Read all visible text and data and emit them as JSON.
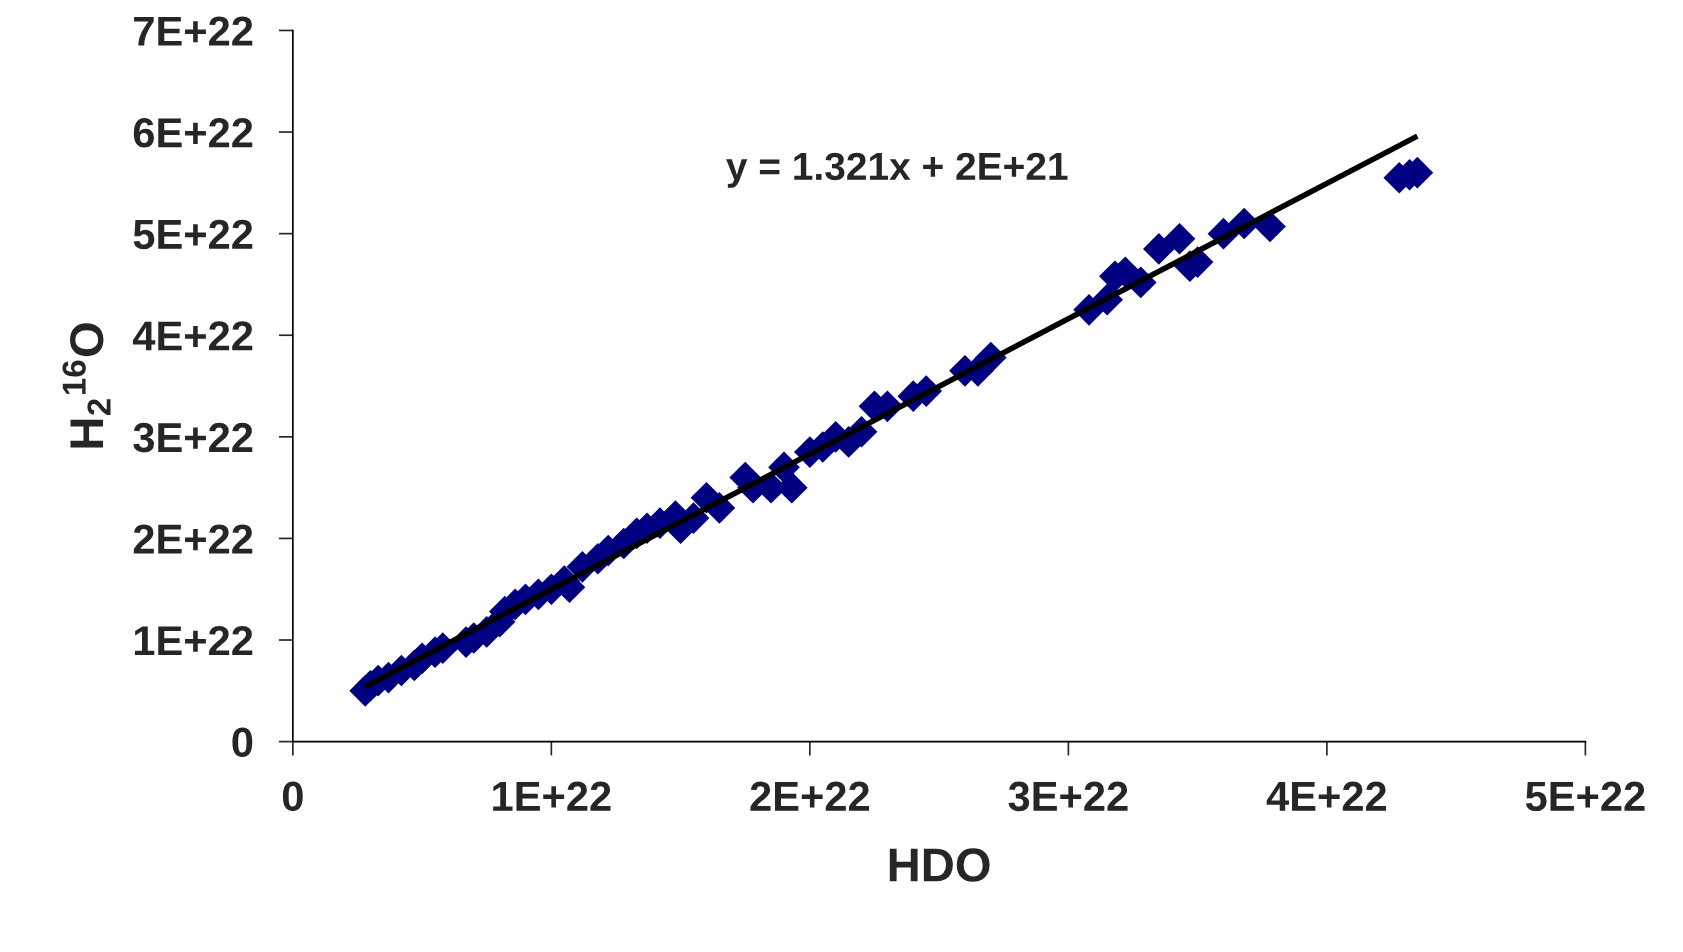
{
  "chart_data": {
    "type": "scatter",
    "xlabel": "HDO",
    "ylabel": "H$_{2}$$^{16}$O",
    "annotations": [
      "y = 1.321x + 2E+21"
    ],
    "xlim": [
      0,
      5e+22
    ],
    "ylim": [
      0,
      7e+22
    ],
    "xticks": [
      0,
      {
        "value": 1e+22,
        "label": "1E+22"
      },
      {
        "value": 2e+22,
        "label": "2E+22"
      },
      {
        "value": 3e+22,
        "label": "3E+22"
      },
      {
        "value": 4e+22,
        "label": "4E+22"
      },
      {
        "value": 5e+22,
        "label": "5E+22"
      }
    ],
    "yticks": [
      0,
      {
        "value": 1e+22,
        "label": "1E+22"
      },
      {
        "value": 2e+22,
        "label": "2E+22"
      },
      {
        "value": 3e+22,
        "label": "3E+22"
      },
      {
        "value": 4e+22,
        "label": "4E+22"
      },
      {
        "value": 5e+22,
        "label": "5E+22"
      },
      {
        "value": 6e+22,
        "label": "6E+22"
      },
      {
        "value": 7e+22,
        "label": "7E+22"
      }
    ],
    "grid": false,
    "legend": false,
    "series": [
      {
        "color": "#000080",
        "marker": "diamond",
        "x": [
          2.8e+21,
          3e+21,
          3.3e+21,
          3.7e+21,
          4.2e+21,
          4.7e+21,
          5e+21,
          5.5e+21,
          5.8e+21,
          6.7e+21,
          7e+21,
          7.5e+21,
          8e+21,
          8.2e+21,
          8.6e+21,
          9e+21,
          9.5e+21,
          1e+22,
          1.05e+22,
          1.07e+22,
          1.12e+22,
          1.18e+22,
          1.22e+22,
          1.28e+22,
          1.33e+22,
          1.37e+22,
          1.42e+22,
          1.48e+22,
          1.5e+22,
          1.55e+22,
          1.6e+22,
          1.65e+22,
          1.75e+22,
          1.78e+22,
          1.85e+22,
          1.9e+22,
          1.93e+22,
          2e+22,
          2.05e+22,
          2.1e+22,
          2.15e+22,
          2.2e+22,
          2.25e+22,
          2.3e+22,
          2.4e+22,
          2.45e+22,
          2.6e+22,
          2.65e+22,
          2.7e+22,
          3.08e+22,
          3.15e+22,
          3.18e+22,
          3.22e+22,
          3.28e+22,
          3.35e+22,
          3.43e+22,
          3.47e+22,
          3.5e+22,
          3.6e+22,
          3.68e+22,
          3.78e+22,
          4.28e+22,
          4.32e+22,
          4.35e+22
        ],
        "values": [
          5e+21,
          5.5e+21,
          6e+21,
          6.3e+21,
          7e+21,
          7.5e+21,
          8.2e+21,
          8.8e+21,
          9.2e+21,
          9.8e+21,
          1.02e+22,
          1.08e+22,
          1.18e+22,
          1.28e+22,
          1.35e+22,
          1.4e+22,
          1.45e+22,
          1.5e+22,
          1.58e+22,
          1.52e+22,
          1.72e+22,
          1.8e+22,
          1.88e+22,
          1.95e+22,
          2.05e+22,
          2.1e+22,
          2.15e+22,
          2.22e+22,
          2.1e+22,
          2.2e+22,
          2.4e+22,
          2.3e+22,
          2.6e+22,
          2.5e+22,
          2.5e+22,
          2.7e+22,
          2.5e+22,
          2.85e+22,
          2.9e+22,
          3e+22,
          2.95e+22,
          3.05e+22,
          3.3e+22,
          3.3e+22,
          3.4e+22,
          3.45e+22,
          3.65e+22,
          3.65e+22,
          3.78e+22,
          4.25e+22,
          4.35e+22,
          4.58e+22,
          4.62e+22,
          4.52e+22,
          4.85e+22,
          4.95e+22,
          4.68e+22,
          4.72e+22,
          5e+22,
          5.1e+22,
          5.07e+22,
          5.55e+22,
          5.58e+22,
          5.6e+22
        ]
      },
      {
        "type": "line",
        "color": "#000000",
        "line_style": "solid",
        "x": [
          2.8e+21,
          4.35e+22
        ],
        "values": [
          5.4e+21,
          5.96e+22
        ]
      }
    ]
  }
}
